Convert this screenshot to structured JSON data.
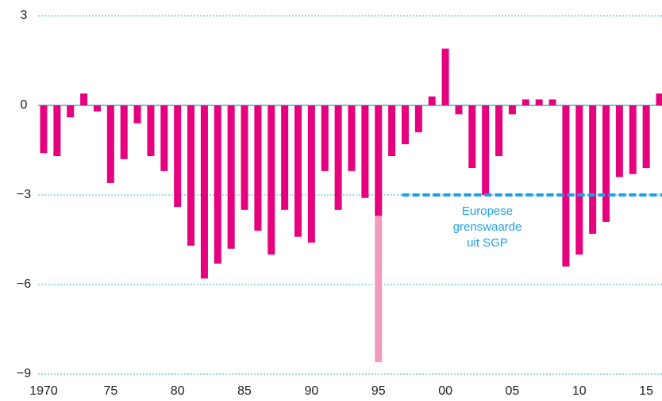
{
  "chart_data": {
    "type": "bar",
    "x": [
      1970,
      1971,
      1972,
      1973,
      1974,
      1975,
      1976,
      1977,
      1978,
      1979,
      1980,
      1981,
      1982,
      1983,
      1984,
      1985,
      1986,
      1987,
      1988,
      1989,
      1990,
      1991,
      1992,
      1993,
      1994,
      1995,
      1996,
      1997,
      1998,
      1999,
      2000,
      2001,
      2002,
      2003,
      2004,
      2005,
      2006,
      2007,
      2008,
      2009,
      2010,
      2011,
      2012,
      2013,
      2014,
      2015,
      2016
    ],
    "series": [
      {
        "color": "#e6007e",
        "values": [
          -1.6,
          -1.7,
          -0.4,
          0.4,
          -0.2,
          -2.6,
          -1.8,
          -0.6,
          -1.7,
          -2.2,
          -3.4,
          -4.7,
          -5.8,
          -5.3,
          -4.8,
          -3.5,
          -4.2,
          -5.0,
          -3.5,
          -4.4,
          -4.6,
          -2.2,
          -3.5,
          -2.2,
          -3.1,
          -3.7,
          -1.7,
          -1.3,
          -0.9,
          0.3,
          1.9,
          -0.3,
          -2.1,
          -3.0,
          -1.7,
          -0.3,
          0.2,
          0.2,
          0.2,
          -5.4,
          -5.0,
          -4.3,
          -3.9,
          -2.4,
          -2.3,
          -2.1,
          0.4
        ]
      },
      {
        "color": "#f29bbf",
        "values": [
          null,
          null,
          null,
          null,
          null,
          null,
          null,
          null,
          null,
          null,
          null,
          null,
          null,
          null,
          null,
          null,
          null,
          null,
          null,
          null,
          null,
          null,
          null,
          null,
          null,
          -4.9,
          null,
          null,
          null,
          null,
          null,
          null,
          null,
          null,
          null,
          null,
          null,
          null,
          null,
          null,
          null,
          null,
          null,
          null,
          null,
          null,
          null
        ]
      }
    ],
    "xlim": [
      1969.6,
      2016.4
    ],
    "xticks": [
      {
        "value": 1970,
        "label": "1970"
      },
      {
        "value": 1975,
        "label": "75"
      },
      {
        "value": 1980,
        "label": "80"
      },
      {
        "value": 1985,
        "label": "85"
      },
      {
        "value": 1990,
        "label": "90"
      },
      {
        "value": 1995,
        "label": "95"
      },
      {
        "value": 2000,
        "label": "00"
      },
      {
        "value": 2005,
        "label": "05"
      },
      {
        "value": 2010,
        "label": "10"
      },
      {
        "value": 2015,
        "label": "15"
      }
    ],
    "ylim": [
      -9,
      3
    ],
    "yticks": [
      3,
      0,
      {
        "value": -3,
        "label": "−3"
      },
      {
        "value": -6,
        "label": "−6"
      },
      {
        "value": -9,
        "label": "−9"
      }
    ],
    "grid": true,
    "reference_line": {
      "value": -3,
      "from": 1997,
      "to": 2016,
      "color": "#1ea0e6"
    },
    "annotation": [
      "Europese",
      "grenswaarde",
      "uit SGP"
    ]
  }
}
